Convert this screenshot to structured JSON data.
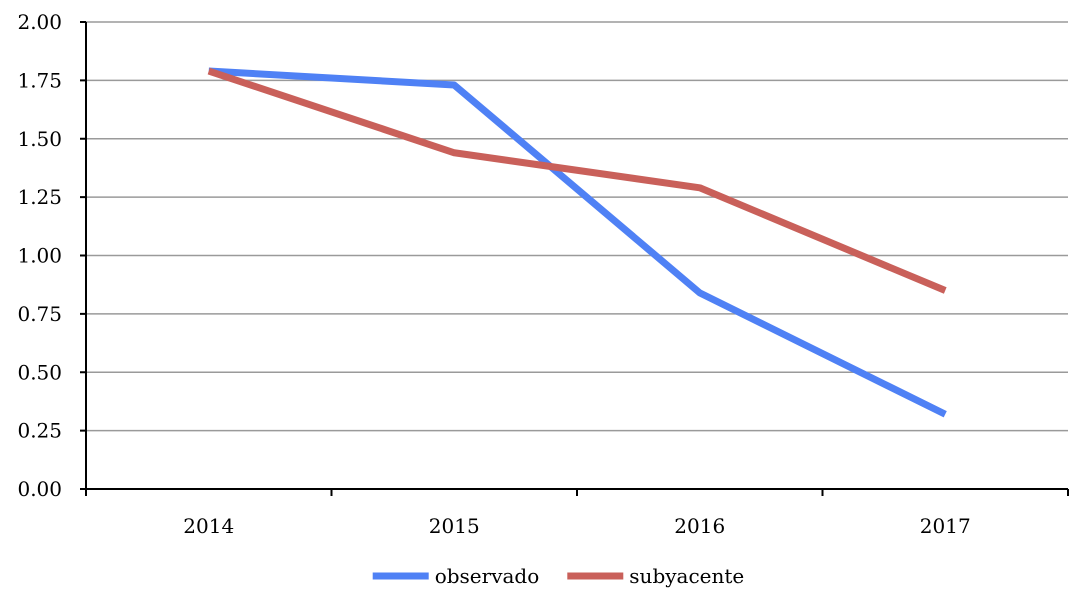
{
  "chart_data": {
    "type": "line",
    "title": "",
    "xlabel": "",
    "ylabel": "",
    "categories": [
      "2014",
      "2015",
      "2016",
      "2017"
    ],
    "ylim": [
      0,
      2
    ],
    "yticks": [
      "0.00",
      "0.25",
      "0.50",
      "0.75",
      "1.00",
      "1.25",
      "1.50",
      "1.75",
      "2.00"
    ],
    "grid": true,
    "legend_position": "bottom",
    "series": [
      {
        "name": "observado",
        "color": "#4f81f5",
        "values": [
          1.79,
          1.73,
          0.84,
          0.32
        ]
      },
      {
        "name": "subyacente",
        "color": "#c9605a",
        "values": [
          1.79,
          1.44,
          1.29,
          0.85
        ]
      }
    ]
  }
}
